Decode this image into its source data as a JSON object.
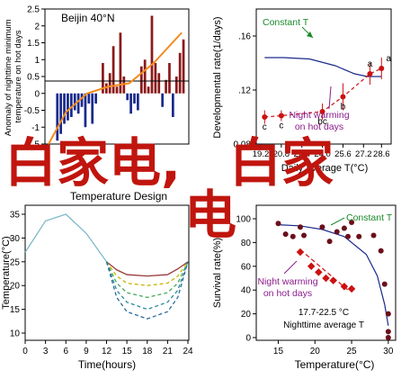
{
  "chart_data": [
    {
      "type": "bar",
      "title": "Beijin 40°N",
      "ylabel": "Anomaly of nighttime minimum temperature on hot days",
      "ylim": [
        -1.5,
        2.5
      ],
      "yticks": [
        "-1.5",
        "-1",
        "-0.5",
        "0",
        "0.5",
        "1",
        "1.5",
        "2",
        "2.5"
      ],
      "zero_line": true,
      "bar_colors": {
        "positive": "#8b1a1a",
        "negative": "#1a2a8b"
      },
      "trend_color": "#f28c1e",
      "values": [
        0.0,
        0.0,
        -1.4,
        -1.2,
        -0.9,
        -0.8,
        -0.7,
        -0.5,
        -0.6,
        -0.4,
        -1.0,
        -0.3,
        -0.9,
        -0.3,
        0.0,
        0.9,
        0.3,
        0.6,
        1.4,
        0.2,
        1.8,
        0.5,
        -0.2,
        -0.6,
        -0.3,
        -0.5,
        0.8,
        1.0,
        0.2,
        2.3,
        0.9,
        0.6,
        -0.4,
        0.4,
        0.9,
        -0.7,
        0.5,
        1.2,
        1.6
      ],
      "trend": [
        [
          0,
          -1.5
        ],
        [
          5,
          -0.55
        ],
        [
          11,
          0.0
        ],
        [
          17,
          0.2
        ],
        [
          23,
          0.3
        ],
        [
          30,
          0.9
        ],
        [
          38,
          1.8
        ]
      ]
    },
    {
      "type": "scatter",
      "ylabel": "Developmental rate(1/days)",
      "xlabel": "Daily average T(°C)",
      "xlim": [
        19.2,
        29
      ],
      "ylim": [
        0.08,
        0.18
      ],
      "yticks": [
        "0.08",
        ".12",
        ".16"
      ],
      "xticks": [
        "19.2",
        "20.8",
        "22.4",
        "24.0",
        "25.6",
        "27.2",
        "28.6"
      ],
      "series": [
        {
          "name": "Constant T",
          "color": "#1a2a8b",
          "curve": [
            [
              19.5,
              0.144
            ],
            [
              21,
              0.144
            ],
            [
              23,
              0.143
            ],
            [
              25,
              0.138
            ],
            [
              26.5,
              0.132
            ],
            [
              27.5,
              0.13
            ],
            [
              28.6,
              0.13
            ]
          ]
        },
        {
          "name": "Night warming on hot days",
          "color": "#cc1111",
          "points": [
            {
              "x": 19.5,
              "y": 0.1,
              "err": 0.005,
              "label": "c"
            },
            {
              "x": 20.8,
              "y": 0.101,
              "err": 0.004,
              "label": "c"
            },
            {
              "x": 24.0,
              "y": 0.104,
              "err": 0.006,
              "label": "bc"
            },
            {
              "x": 25.6,
              "y": 0.115,
              "err": 0.01,
              "label": "b"
            },
            {
              "x": 27.7,
              "y": 0.132,
              "err": 0.008,
              "label": "a"
            },
            {
              "x": 28.6,
              "y": 0.136,
              "err": 0.008,
              "label": "a"
            }
          ]
        }
      ],
      "annotations": [
        "Constant T",
        "Night warming",
        "on hot days"
      ]
    },
    {
      "type": "line",
      "title": "Temperature Design",
      "ylabel": "Temperature(°C)",
      "xlabel": "Time(hours)",
      "xlim": [
        0,
        24
      ],
      "ylim": [
        10,
        35
      ],
      "xticks": [
        "0",
        "3",
        "6",
        "9",
        "12",
        "15",
        "18",
        "21",
        "24"
      ],
      "yticks": [
        "10",
        "15",
        "20",
        "25",
        "30",
        "35"
      ],
      "series": [
        {
          "color": "#7fb9c9",
          "style": "solid",
          "x": [
            0,
            3,
            6,
            9,
            12
          ],
          "y": [
            27,
            33.6,
            35,
            31,
            25
          ]
        },
        {
          "color": "#9b3a3a",
          "style": "solid",
          "x": [
            12,
            13.5,
            15,
            18,
            21,
            22.5,
            24
          ],
          "y": [
            25,
            23.3,
            22.3,
            22,
            22.3,
            23.5,
            25
          ]
        },
        {
          "color": "#c8b400",
          "style": "dashed",
          "x": [
            12,
            13.5,
            15,
            18,
            21,
            22.5,
            24
          ],
          "y": [
            25,
            22,
            20.5,
            20,
            20.5,
            22,
            25
          ]
        },
        {
          "color": "#44aa55",
          "style": "dashed",
          "x": [
            12,
            13.5,
            15,
            18,
            21,
            22.5,
            24
          ],
          "y": [
            25,
            20.5,
            18.5,
            17.5,
            18.5,
            20.5,
            25
          ]
        },
        {
          "color": "#2a8a9a",
          "style": "dashed",
          "x": [
            12,
            13.5,
            15,
            18,
            21,
            22.5,
            24
          ],
          "y": [
            25,
            19,
            16.5,
            15,
            16.5,
            19,
            25
          ]
        },
        {
          "color": "#2a6b9a",
          "style": "dashed",
          "x": [
            12,
            13.5,
            15,
            18,
            21,
            22.5,
            24
          ],
          "y": [
            25,
            17.5,
            14.5,
            13,
            14.5,
            17.5,
            25
          ]
        }
      ]
    },
    {
      "type": "scatter",
      "ylabel": "Survival rate(%)",
      "xlabel": "Temperature(°C)",
      "note": "17.7-22.5 °C",
      "xlabel2": "Nighttime average T",
      "xlim": [
        12,
        31
      ],
      "ylim": [
        0,
        100
      ],
      "xticks": [
        "15",
        "20",
        "25",
        "30"
      ],
      "yticks": [
        "0",
        "20",
        "40",
        "60",
        "80",
        "100"
      ],
      "series": [
        {
          "name": "Constant T",
          "color": "#1a2a8b",
          "curve": [
            [
              15,
              95
            ],
            [
              18,
              94
            ],
            [
              21,
              91
            ],
            [
              24,
              85
            ],
            [
              27,
              70
            ],
            [
              28.5,
              52
            ],
            [
              29.5,
              28
            ],
            [
              30,
              10
            ]
          ],
          "points": [
            [
              15,
              96
            ],
            [
              16,
              87
            ],
            [
              17,
              85
            ],
            [
              18,
              93
            ],
            [
              18.5,
              86
            ],
            [
              21,
              93
            ],
            [
              22,
              81
            ],
            [
              23,
              89
            ],
            [
              24,
              92
            ],
            [
              24.5,
              85
            ],
            [
              25,
              97
            ],
            [
              26,
              85
            ],
            [
              28,
              86
            ],
            [
              29,
              73
            ],
            [
              29.5,
              45
            ],
            [
              30,
              20
            ],
            [
              30,
              5
            ],
            [
              30,
              0
            ]
          ],
          "point_color": "#6b0f1a"
        },
        {
          "name": "Night warming on hot days",
          "color": "#cc1111",
          "points": [
            [
              18,
              72
            ],
            [
              19.5,
              60
            ],
            [
              20.5,
              55
            ],
            [
              21.5,
              50
            ],
            [
              22.5,
              48
            ],
            [
              24,
              43
            ],
            [
              25,
              41
            ]
          ],
          "line": [
            [
              18,
              74
            ],
            [
              24.5,
              40
            ]
          ]
        }
      ],
      "annotations": [
        "Constant T",
        "Night warming",
        "on hot days"
      ]
    }
  ],
  "overlay_text": {
    "left": "白家电,",
    "right": "白家",
    "under": "电"
  },
  "colors": {
    "overlay": "#c0150e",
    "axis": "#000000"
  }
}
